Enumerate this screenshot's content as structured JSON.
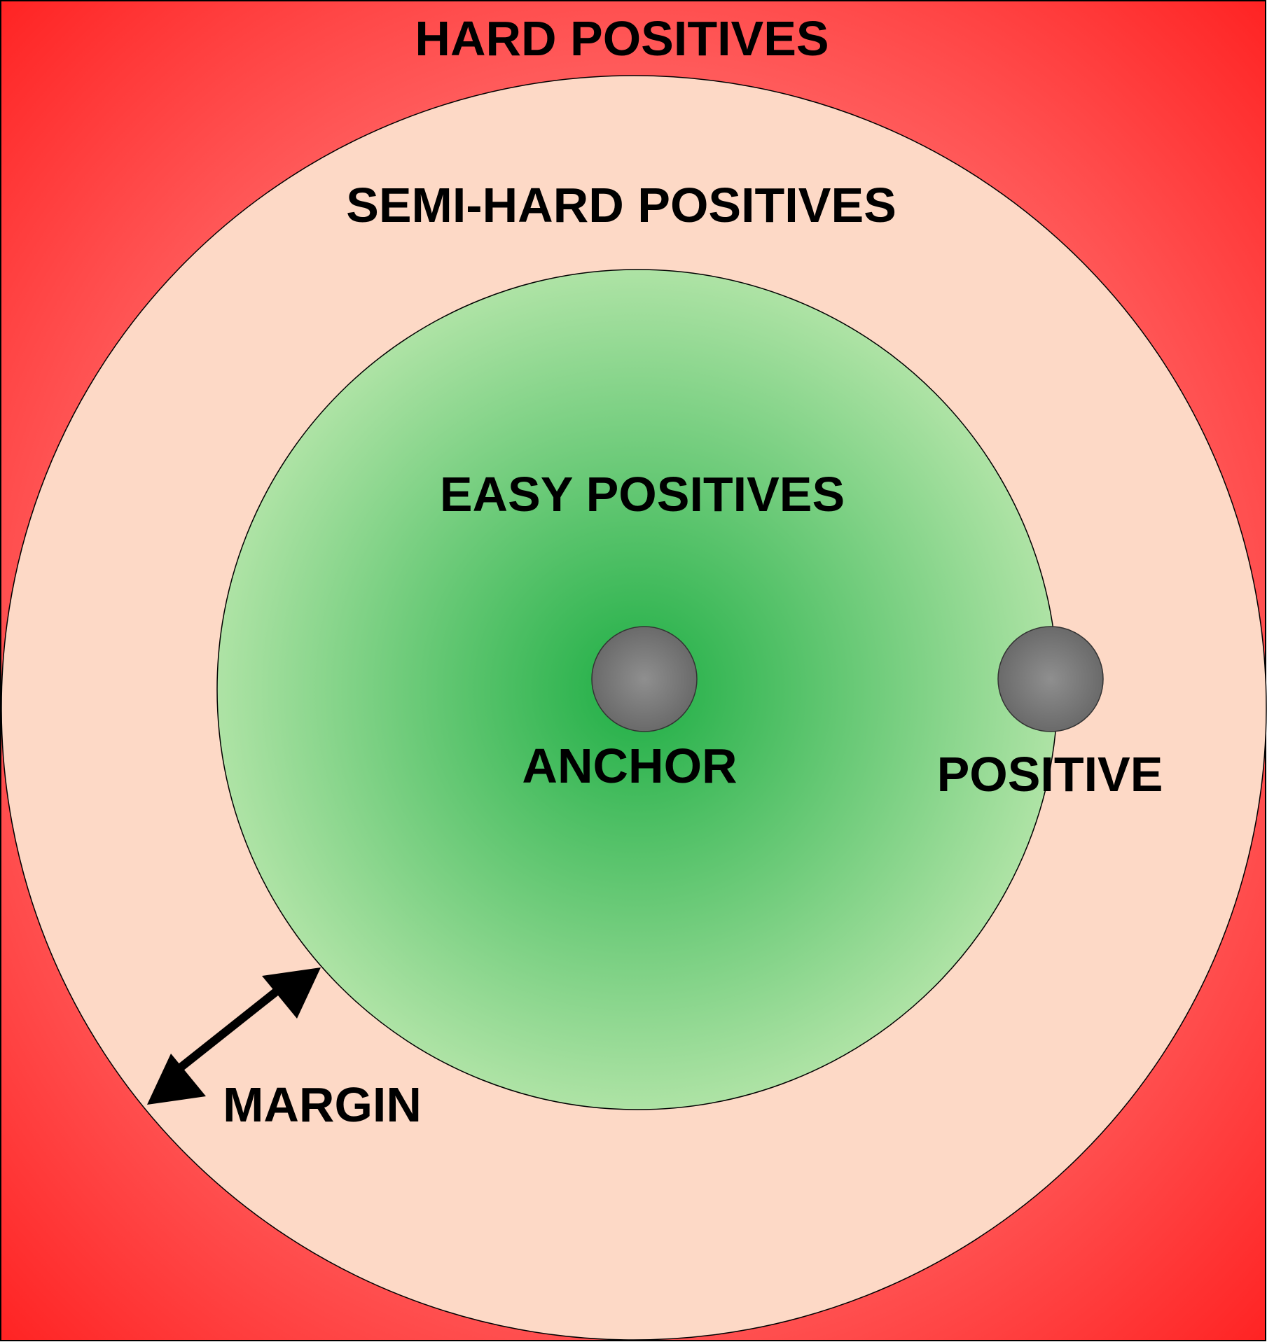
{
  "labels": {
    "hard_positives": "HARD POSITIVES",
    "semi_hard_positives": "SEMI-HARD POSITIVES",
    "easy_positives": "EASY POSITIVES",
    "anchor": "ANCHOR",
    "positive": "POSITIVE",
    "margin": "MARGIN"
  },
  "colors": {
    "hard_region": "#ff1a1a",
    "hard_region_light": "#ff5a5a",
    "semi_hard_region": "#fdd9c6",
    "easy_region_center": "#1fae45",
    "easy_region_edge": "#aee3a5",
    "point_fill": "#7a7a7a",
    "outline": "#000000"
  }
}
